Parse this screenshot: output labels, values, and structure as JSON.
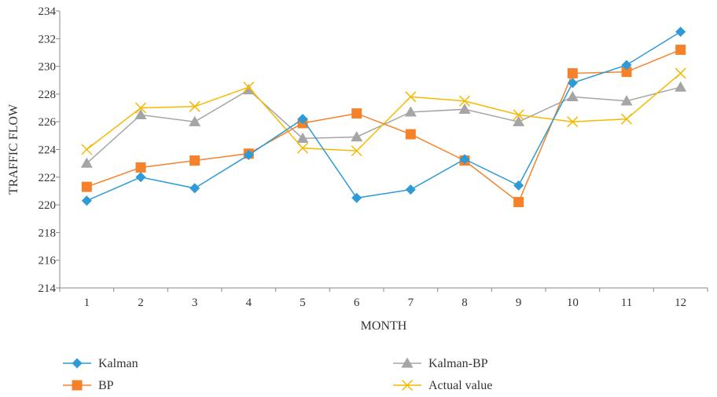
{
  "chart_data": {
    "type": "line",
    "title": "",
    "xlabel": "MONTH",
    "ylabel": "TRAFFIC FLOW",
    "categories": [
      "1",
      "2",
      "3",
      "4",
      "5",
      "6",
      "7",
      "8",
      "9",
      "10",
      "11",
      "12"
    ],
    "ylim": [
      214,
      234
    ],
    "yticks": [
      214,
      216,
      218,
      220,
      222,
      224,
      226,
      228,
      230,
      232,
      234
    ],
    "grid": false,
    "legend": "bottom",
    "series": [
      {
        "name": "Kalman",
        "color": "#2e9bd6",
        "marker": "diamond",
        "values": [
          220.3,
          222.0,
          221.2,
          223.6,
          226.2,
          220.5,
          221.1,
          223.3,
          221.4,
          228.8,
          230.1,
          232.5
        ]
      },
      {
        "name": "BP",
        "color": "#f5822a",
        "marker": "square",
        "values": [
          221.3,
          222.7,
          223.2,
          223.7,
          225.9,
          226.6,
          225.1,
          223.2,
          220.2,
          229.5,
          229.6,
          231.2
        ]
      },
      {
        "name": "Kalman-BP",
        "color": "#a5a5a5",
        "marker": "triangle",
        "values": [
          223.0,
          226.5,
          226.0,
          228.3,
          224.8,
          224.9,
          226.7,
          226.9,
          226.0,
          227.8,
          227.5,
          228.5
        ]
      },
      {
        "name": "Actual value",
        "color": "#f7b900",
        "marker": "x",
        "values": [
          224.0,
          227.0,
          227.1,
          228.5,
          224.1,
          223.9,
          227.8,
          227.5,
          226.5,
          226.0,
          226.2,
          229.5
        ]
      }
    ]
  }
}
